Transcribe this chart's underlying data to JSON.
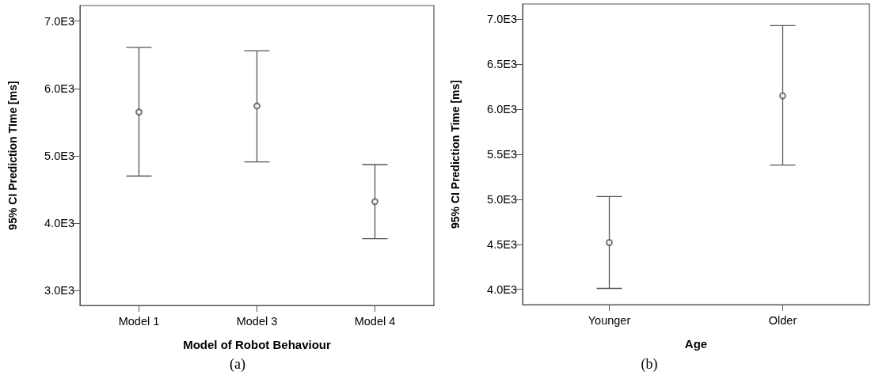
{
  "chart_data": [
    {
      "type": "scatter",
      "xlabel": "Model of Robot Behaviour",
      "ylabel": "95% CI Prediction TIme [ms]",
      "categories": [
        "Model 1",
        "Model 3",
        "Model 4"
      ],
      "series": [
        {
          "color": "#555555",
          "values": [
            5650,
            5740,
            4320
          ],
          "errors": [
            [
              4700,
              6610
            ],
            [
              4910,
              6560
            ],
            [
              3770,
              4870
            ]
          ]
        }
      ],
      "ylim": [
        2780,
        7230
      ],
      "yticks": [
        {
          "value": 3000,
          "label": "3.0E3"
        },
        {
          "value": 4000,
          "label": "4.0E3"
        },
        {
          "value": 5000,
          "label": "5.0E3"
        },
        {
          "value": 6000,
          "label": "6.0E3"
        },
        {
          "value": 7000,
          "label": "7.0E3"
        }
      ],
      "marker": "circle",
      "grid": false,
      "annotations": [
        "(a)"
      ]
    },
    {
      "type": "scatter",
      "xlabel": "Age",
      "ylabel": "95% CI Prediction Time [ms]",
      "categories": [
        "Younger",
        "Older"
      ],
      "series": [
        {
          "color": "#555555",
          "values": [
            4520,
            6150
          ],
          "errors": [
            [
              4010,
              5030
            ],
            [
              5380,
              6930
            ]
          ]
        }
      ],
      "ylim": [
        3830,
        7170
      ],
      "yticks": [
        {
          "value": 4000,
          "label": "4.0E3"
        },
        {
          "value": 4500,
          "label": "4.5E3"
        },
        {
          "value": 5000,
          "label": "5.0E3"
        },
        {
          "value": 5500,
          "label": "5.5E3"
        },
        {
          "value": 6000,
          "label": "6.0E3"
        },
        {
          "value": 6500,
          "label": "6.5E3"
        },
        {
          "value": 7000,
          "label": "7.0E3"
        }
      ],
      "marker": "circle",
      "grid": false,
      "annotations": [
        "(b)"
      ]
    }
  ]
}
